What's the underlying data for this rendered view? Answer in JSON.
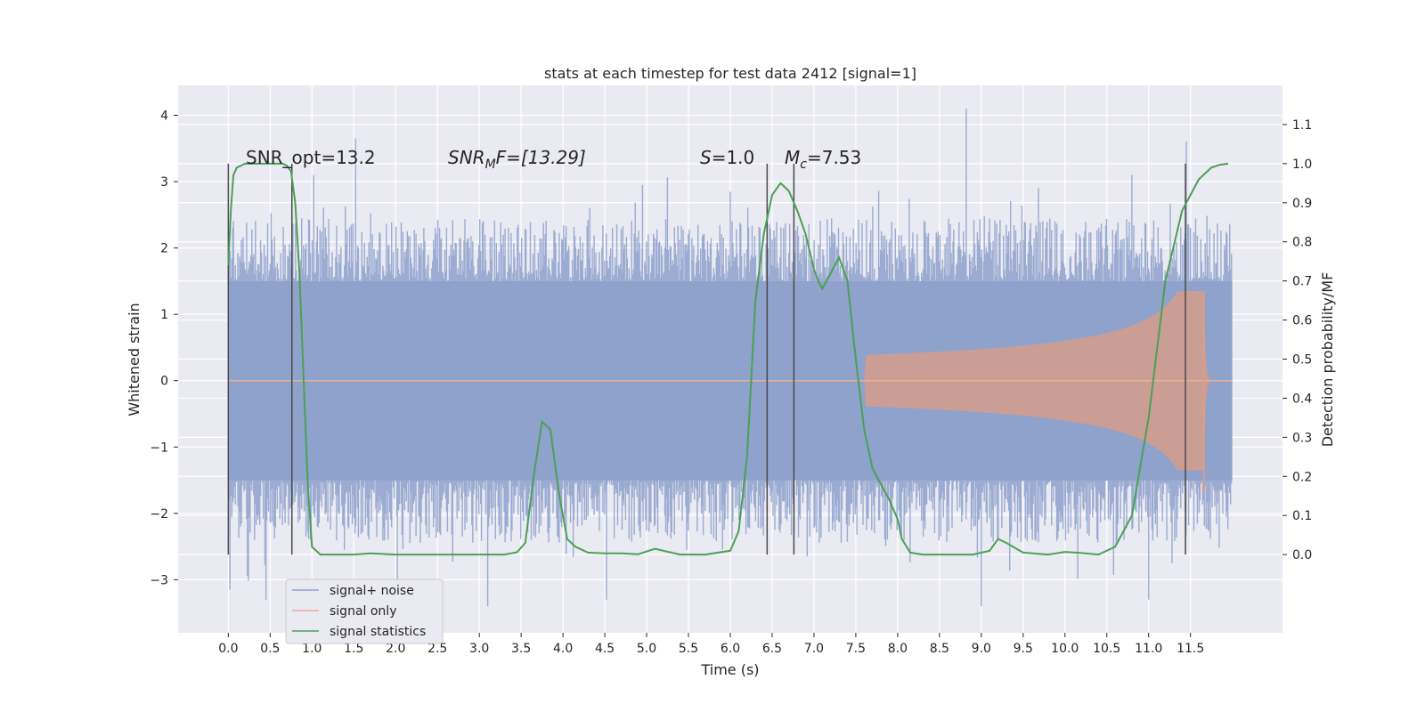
{
  "chart_data": {
    "type": "line",
    "title": "stats at each timestep for test data 2412 [signal=1]",
    "xlabel": "Time (s)",
    "ylabel_left": "Whitened strain",
    "ylabel_right": "Detection probability/MF",
    "xlim": [
      -0.6,
      12.6
    ],
    "ylim_left": [
      -3.8,
      4.45
    ],
    "ylim_right": [
      -0.2,
      1.2
    ],
    "x_ticks": [
      "0.0",
      "0.5",
      "1.0",
      "1.5",
      "2.0",
      "2.5",
      "3.0",
      "3.5",
      "4.0",
      "4.5",
      "5.0",
      "5.5",
      "6.0",
      "6.5",
      "7.0",
      "7.5",
      "8.0",
      "8.5",
      "9.0",
      "9.5",
      "10.0",
      "10.5",
      "11.0",
      "11.5"
    ],
    "y_ticks_left": [
      "4",
      "3",
      "2",
      "1",
      "0",
      "−1",
      "−2",
      "−3"
    ],
    "y_ticks_right": [
      "1.1",
      "1.0",
      "0.9",
      "0.8",
      "0.7",
      "0.6",
      "0.5",
      "0.4",
      "0.3",
      "0.2",
      "0.1",
      "0.0"
    ],
    "grid": true,
    "legend": {
      "location": "lower-left",
      "entries": [
        {
          "name": "signal+ noise",
          "color": "#8da0cb"
        },
        {
          "name": "signal only",
          "color": "#e5ae98"
        },
        {
          "name": "signal statistics",
          "color": "#4c9f56"
        }
      ]
    },
    "annotations": {
      "snr_opt": "SNR_opt=13.2",
      "snr_mf_base": "SNR",
      "snr_mf_sub": "M",
      "snr_mf_rest": "F=[13.29]",
      "s_sym": "S",
      "s_val": "=1.0",
      "mc_sym": "M",
      "mc_sub": "c",
      "mc_val": "=7.53"
    },
    "vertical_markers_s": [
      0.0,
      0.76,
      6.44,
      6.76,
      11.44
    ],
    "series": [
      {
        "name": "signal+ noise",
        "kind": "noise-band",
        "t_range": [
          0.0,
          12.0
        ],
        "core_range": [
          -1.5,
          1.5
        ],
        "typical_peak": [
          -2.3,
          2.3
        ],
        "max": 4.1,
        "min": -3.45
      },
      {
        "name": "signal only",
        "kind": "chirp",
        "onset_s": 7.6,
        "merger_s": 11.66,
        "end_s": 12.0,
        "peak_amplitude": 1.35
      },
      {
        "name": "signal statistics",
        "kind": "line",
        "axis": "right",
        "x": [
          0.0,
          0.03,
          0.06,
          0.1,
          0.15,
          0.2,
          0.3,
          0.4,
          0.5,
          0.6,
          0.65,
          0.7,
          0.75,
          0.8,
          0.85,
          0.9,
          0.95,
          1.0,
          1.1,
          1.3,
          1.5,
          1.7,
          2.0,
          2.5,
          3.0,
          3.3,
          3.45,
          3.55,
          3.65,
          3.75,
          3.85,
          3.95,
          4.05,
          4.15,
          4.3,
          4.5,
          4.7,
          4.9,
          5.0,
          5.1,
          5.2,
          5.4,
          5.7,
          6.0,
          6.1,
          6.2,
          6.3,
          6.4,
          6.5,
          6.6,
          6.7,
          6.8,
          6.9,
          7.0,
          7.05,
          7.1,
          7.2,
          7.3,
          7.4,
          7.5,
          7.6,
          7.7,
          7.8,
          7.9,
          8.0,
          8.05,
          8.15,
          8.3,
          8.6,
          8.9,
          9.1,
          9.2,
          9.3,
          9.5,
          9.8,
          10.0,
          10.2,
          10.4,
          10.6,
          10.8,
          11.0,
          11.2,
          11.4,
          11.6,
          11.75,
          11.85,
          11.95
        ],
        "y": [
          0.74,
          0.88,
          0.97,
          0.99,
          0.995,
          1.0,
          1.0,
          1.0,
          1.0,
          1.0,
          1.0,
          0.995,
          0.98,
          0.9,
          0.72,
          0.45,
          0.18,
          0.02,
          0.0,
          0.0,
          0.0,
          0.003,
          0.0,
          0.0,
          0.0,
          0.0,
          0.006,
          0.03,
          0.2,
          0.34,
          0.32,
          0.16,
          0.04,
          0.02,
          0.005,
          0.003,
          0.003,
          0.001,
          0.008,
          0.015,
          0.01,
          0.0,
          0.0,
          0.01,
          0.06,
          0.25,
          0.65,
          0.82,
          0.92,
          0.95,
          0.93,
          0.88,
          0.82,
          0.73,
          0.7,
          0.68,
          0.72,
          0.76,
          0.7,
          0.5,
          0.32,
          0.22,
          0.18,
          0.14,
          0.09,
          0.04,
          0.005,
          0.0,
          0.0,
          0.0,
          0.01,
          0.04,
          0.03,
          0.005,
          0.0,
          0.007,
          0.004,
          0.0,
          0.02,
          0.1,
          0.35,
          0.7,
          0.88,
          0.96,
          0.99,
          0.997,
          1.0
        ]
      }
    ]
  }
}
